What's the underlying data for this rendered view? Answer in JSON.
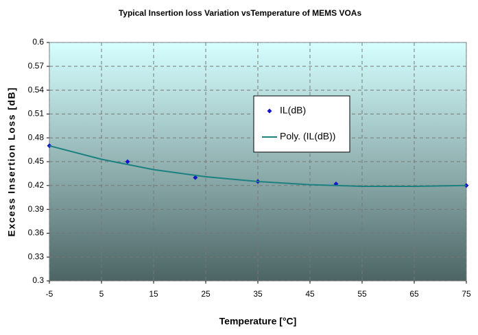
{
  "chart_data": {
    "type": "scatter",
    "title": "Typical Insertion loss Variation vsTemperature of MEMS VOAs",
    "x_label": "Temperature [°C]",
    "y_label": "Excess Insertion Loss [dB]",
    "series": [
      {
        "name": "IL(dB)",
        "type": "scatter",
        "color": "#1414c8",
        "x": [
          -5,
          10,
          23,
          35,
          50,
          75
        ],
        "values": [
          0.47,
          0.45,
          0.43,
          0.425,
          0.422,
          0.42
        ]
      },
      {
        "name": "Poly. (IL(dB))",
        "type": "line",
        "color": "#1a8080",
        "x": [
          -5,
          5,
          15,
          25,
          35,
          45,
          55,
          65,
          75
        ],
        "values": [
          0.47,
          0.453,
          0.44,
          0.431,
          0.425,
          0.421,
          0.419,
          0.419,
          0.42
        ]
      }
    ],
    "xlim": [
      -5,
      75
    ],
    "xticks": [
      -5,
      5,
      15,
      25,
      35,
      45,
      55,
      65,
      75
    ],
    "ylim": [
      0.3,
      0.6
    ],
    "yticks": [
      0.3,
      0.33,
      0.36,
      0.39,
      0.42,
      0.45,
      0.48,
      0.51,
      0.54,
      0.57,
      0.6
    ],
    "grid": true,
    "legend": "upper-center"
  }
}
